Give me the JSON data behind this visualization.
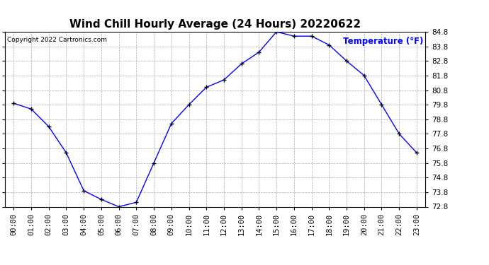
{
  "title": "Wind Chill Hourly Average (24 Hours) 20220622",
  "copyright_text": "Copyright 2022 Cartronics.com",
  "ylabel": "Temperature (°F)",
  "ylabel_color": "blue",
  "line_color": "blue",
  "marker_color": "black",
  "background_color": "white",
  "grid_color": "#aaaaaa",
  "hours": [
    "00:00",
    "01:00",
    "02:00",
    "03:00",
    "04:00",
    "05:00",
    "06:00",
    "07:00",
    "08:00",
    "09:00",
    "10:00",
    "11:00",
    "12:00",
    "13:00",
    "14:00",
    "15:00",
    "16:00",
    "17:00",
    "18:00",
    "19:00",
    "20:00",
    "21:00",
    "22:00",
    "23:00"
  ],
  "values": [
    79.9,
    79.5,
    78.3,
    76.5,
    73.9,
    73.3,
    72.8,
    73.1,
    75.8,
    78.5,
    79.8,
    81.0,
    81.5,
    82.6,
    83.4,
    84.8,
    84.5,
    84.5,
    83.9,
    82.8,
    81.8,
    79.8,
    77.8,
    76.5
  ],
  "ylim_min": 72.8,
  "ylim_max": 84.8,
  "ytick_step": 1.0,
  "title_fontsize": 11,
  "axis_fontsize": 7.5,
  "copyright_fontsize": 6.5,
  "ylabel_fontsize": 8.5
}
